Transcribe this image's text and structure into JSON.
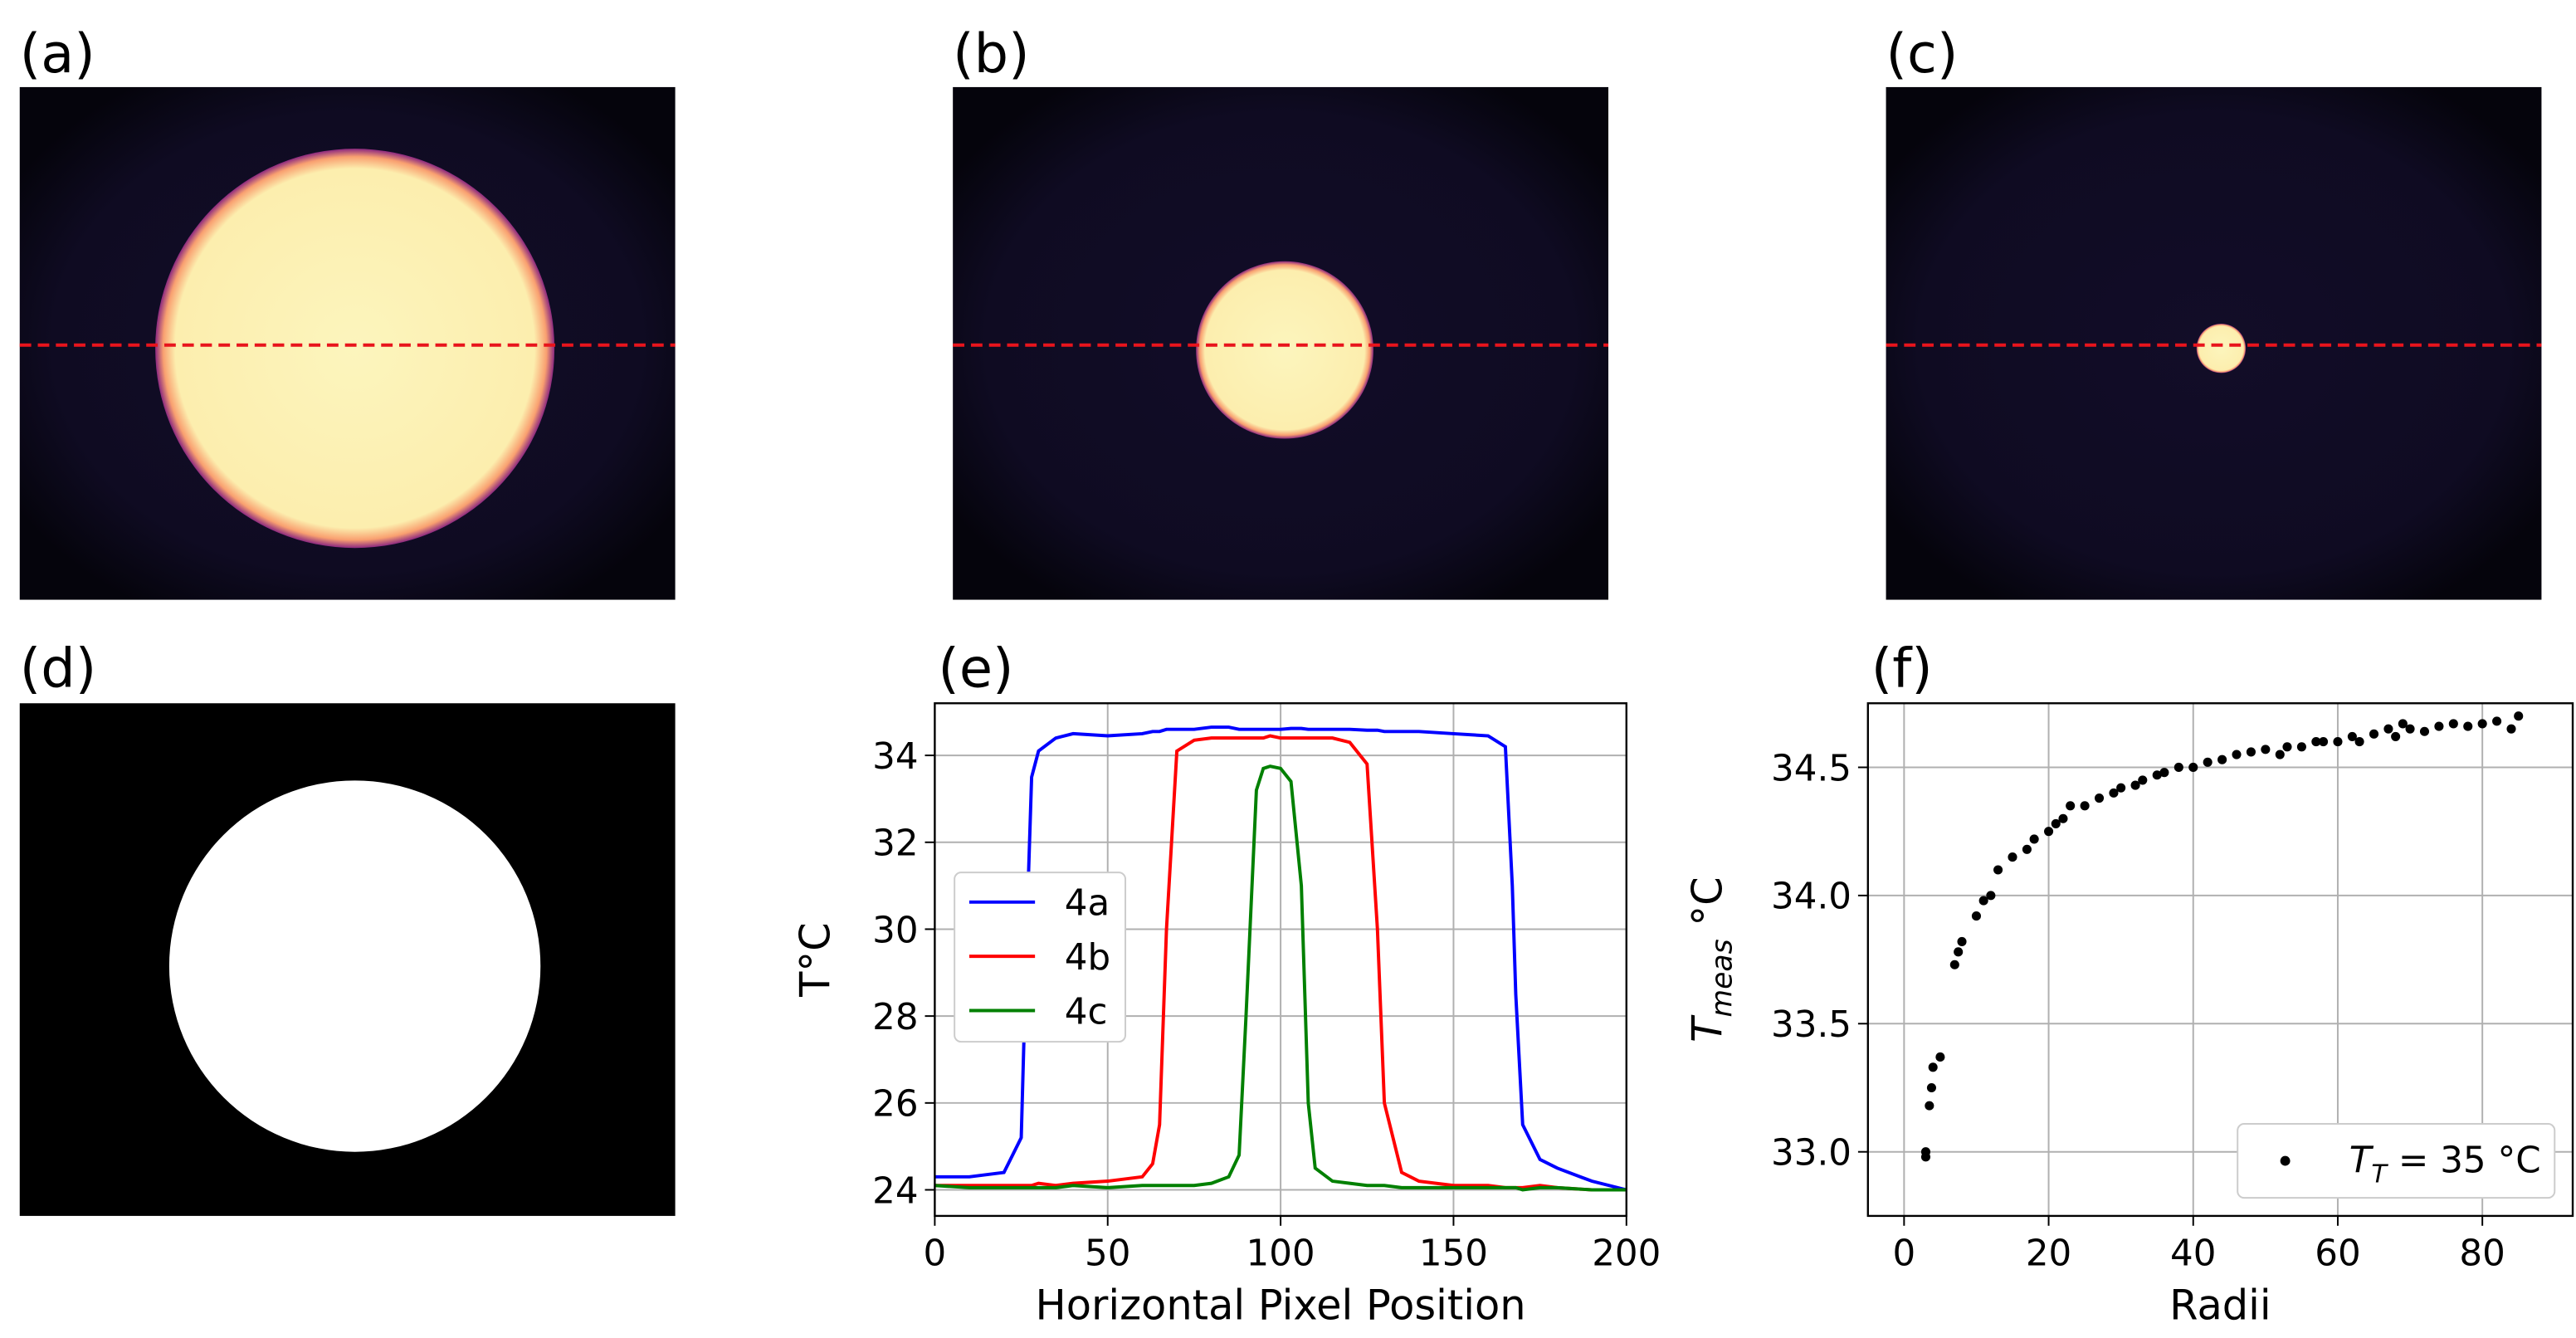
{
  "panel_labels": [
    "(a)",
    "(b)",
    "(c)",
    "(d)",
    "(e)",
    "(f)"
  ],
  "chart_data": [
    {
      "type": "line",
      "xlabel": "Horizontal Pixel Position",
      "ylabel": "T°C",
      "xlim": [
        0,
        200
      ],
      "ylim": [
        23.4,
        35.2
      ],
      "xticks": [
        0,
        50,
        100,
        150,
        200
      ],
      "yticks": [
        24,
        26,
        28,
        30,
        32,
        34
      ],
      "grid": true,
      "legend": "center left",
      "x": [
        0,
        10,
        20,
        25,
        27,
        28,
        30,
        35,
        40,
        50,
        60,
        63,
        65,
        67,
        70,
        75,
        80,
        85,
        88,
        90,
        93,
        95,
        97,
        100,
        103,
        106,
        108,
        110,
        115,
        120,
        125,
        128,
        130,
        135,
        140,
        150,
        160,
        165,
        167,
        168,
        170,
        175,
        180,
        190,
        200
      ],
      "series": [
        {
          "name": "4a",
          "color": "#0000ff",
          "values": [
            24.3,
            24.3,
            24.4,
            25.2,
            31,
            33.5,
            34.1,
            34.4,
            34.5,
            34.45,
            34.5,
            34.55,
            34.55,
            34.6,
            34.6,
            34.6,
            34.65,
            34.65,
            34.6,
            34.6,
            34.6,
            34.6,
            34.6,
            34.6,
            34.62,
            34.62,
            34.6,
            34.6,
            34.6,
            34.6,
            34.58,
            34.58,
            34.55,
            34.55,
            34.55,
            34.5,
            34.45,
            34.2,
            31,
            28.5,
            25.5,
            24.7,
            24.5,
            24.2,
            24.0
          ]
        },
        {
          "name": "4b",
          "color": "#ff0000",
          "values": [
            24.1,
            24.1,
            24.1,
            24.1,
            24.1,
            24.1,
            24.15,
            24.1,
            24.15,
            24.2,
            24.3,
            24.6,
            25.5,
            30,
            34.1,
            34.35,
            34.4,
            34.4,
            34.4,
            34.4,
            34.4,
            34.4,
            34.45,
            34.4,
            34.4,
            34.4,
            34.4,
            34.4,
            34.4,
            34.3,
            33.8,
            30,
            26,
            24.4,
            24.2,
            24.1,
            24.1,
            24.05,
            24.05,
            24.05,
            24.05,
            24.1,
            24.05,
            24.0,
            24.0
          ]
        },
        {
          "name": "4c",
          "color": "#008000",
          "values": [
            24.1,
            24.05,
            24.05,
            24.05,
            24.05,
            24.05,
            24.05,
            24.05,
            24.1,
            24.05,
            24.1,
            24.1,
            24.1,
            24.1,
            24.1,
            24.1,
            24.15,
            24.3,
            24.8,
            28,
            33.2,
            33.7,
            33.75,
            33.7,
            33.4,
            31,
            26,
            24.5,
            24.2,
            24.15,
            24.1,
            24.1,
            24.1,
            24.05,
            24.05,
            24.05,
            24.05,
            24.05,
            24.05,
            24.05,
            24.0,
            24.05,
            24.05,
            24.0,
            24.0
          ]
        }
      ]
    },
    {
      "type": "scatter",
      "xlabel": "Radii",
      "ylabel_parts": [
        "T",
        "meas",
        "  °C"
      ],
      "xlim": [
        -5,
        92.5
      ],
      "ylim": [
        32.75,
        34.75
      ],
      "xticks": [
        0,
        20,
        40,
        60,
        80
      ],
      "yticks": [
        {
          "value": 33,
          "label": "33.0"
        },
        33.5,
        {
          "value": 34,
          "label": "34.0"
        },
        34.5
      ],
      "grid": true,
      "legend": "lower right",
      "legend_parts": [
        "T",
        "T",
        " = 35 °C"
      ],
      "color": "#000000",
      "x": [
        3,
        3,
        3.5,
        3.8,
        4,
        5,
        7,
        7.5,
        8,
        10,
        11,
        12,
        13,
        15,
        17,
        18,
        20,
        21,
        22,
        23,
        25,
        27,
        29,
        30,
        32,
        33,
        35,
        36,
        38,
        40,
        42,
        44,
        46,
        48,
        50,
        52,
        53,
        55,
        57,
        58,
        60,
        62,
        63,
        65,
        67,
        68,
        69,
        70,
        72,
        74,
        76,
        78,
        80,
        82,
        84,
        85
      ],
      "values": [
        33.0,
        32.98,
        33.18,
        33.25,
        33.33,
        33.37,
        33.73,
        33.78,
        33.82,
        33.92,
        33.98,
        34.0,
        34.1,
        34.15,
        34.18,
        34.22,
        34.25,
        34.28,
        34.3,
        34.35,
        34.35,
        34.38,
        34.4,
        34.42,
        34.43,
        34.45,
        34.47,
        34.48,
        34.5,
        34.5,
        34.52,
        34.53,
        34.55,
        34.56,
        34.57,
        34.55,
        34.58,
        34.58,
        34.6,
        34.6,
        34.6,
        34.62,
        34.6,
        34.63,
        34.65,
        34.62,
        34.67,
        34.65,
        34.64,
        34.66,
        34.67,
        34.66,
        34.67,
        34.68,
        34.65,
        34.7
      ]
    }
  ]
}
